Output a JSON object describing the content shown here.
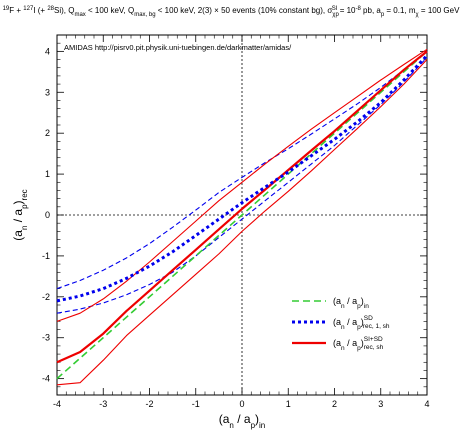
{
  "header": {
    "text": "¹⁹F + ¹²⁷I (+ ²⁸Si), Q_max < 100 keV, Q_max, bg < 100 keV, 2(3) × 50 events (10% constant bg), σ_χp^SI = 10⁻⁸ pb, a_p = 0.1, m_χ = 100 GeV"
  },
  "annotation": {
    "text": "AMIDAS   http://pisrv0.pit.physik.uni-tuebingen.de/darkmatter/amidas/"
  },
  "chart_data": {
    "type": "line",
    "xlabel": "(a_n / a_p)_in",
    "ylabel": "(a_n / a_p)_rec",
    "xlim": [
      -4,
      4
    ],
    "ylim": [
      -4.4,
      4.4
    ],
    "xticks": [
      -4,
      -3,
      -2,
      -1,
      0,
      1,
      2,
      3,
      4
    ],
    "yticks": [
      -4,
      -3,
      -2,
      -1,
      0,
      1,
      2,
      3,
      4
    ],
    "x_tick_labels": [
      "-4",
      "-3",
      "-2",
      "-1",
      "0",
      "1",
      "2",
      "3",
      "4"
    ],
    "y_tick_labels": [
      "-4",
      "-3",
      "-2",
      "-1",
      "0",
      "1",
      "2",
      "3",
      "4"
    ],
    "reference_lines": {
      "x": 0,
      "y": 0,
      "style": "dotted"
    },
    "legend_position": "lower-right",
    "legend": [
      {
        "label": "(a_n / a_p)_in",
        "color": "#33cc33",
        "style": "dashed"
      },
      {
        "label": "(a_n / a_p)_rec, 1, sh ^SD",
        "color": "#0000ee",
        "style": "dotted-thick"
      },
      {
        "label": "(a_n / a_p)_rec, sh ^SI+SD",
        "color": "#ee0000",
        "style": "solid-thick"
      }
    ],
    "series": [
      {
        "name": "(a_n / a_p)_in",
        "color": "#33cc33",
        "style": "dashed",
        "width": 1.6,
        "x": [
          -4,
          4
        ],
        "y": [
          -4,
          4
        ]
      },
      {
        "name": "(a_n / a_p)_rec, 1, sh ^SD",
        "color": "#0000ee",
        "style": "dotted",
        "width": 3,
        "x": [
          -4,
          -3.5,
          -3,
          -2.5,
          -2,
          -1.5,
          -1,
          -0.5,
          0,
          0.5,
          1,
          1.5,
          2,
          2.5,
          3,
          3.5,
          4
        ],
        "y": [
          -2.1,
          -1.98,
          -1.8,
          -1.55,
          -1.25,
          -0.9,
          -0.5,
          -0.1,
          0.3,
          0.68,
          1.05,
          1.45,
          1.85,
          2.28,
          2.75,
          3.3,
          3.9
        ]
      },
      {
        "name": "SD upper band",
        "color": "#0000ee",
        "style": "dashed",
        "width": 1.1,
        "x": [
          -4,
          -3.5,
          -3,
          -2.5,
          -2,
          -1.5,
          -1,
          -0.5,
          0,
          0.5,
          1,
          1.5,
          2,
          2.5,
          3,
          3.5,
          4
        ],
        "y": [
          -1.8,
          -1.6,
          -1.35,
          -1.05,
          -0.7,
          -0.3,
          0.12,
          0.55,
          0.92,
          1.28,
          1.62,
          1.98,
          2.35,
          2.72,
          3.12,
          3.55,
          3.98
        ]
      },
      {
        "name": "SD lower band",
        "color": "#0000ee",
        "style": "dashed",
        "width": 1.1,
        "x": [
          -4,
          -3.5,
          -3,
          -2.5,
          -2,
          -1.5,
          -1,
          -0.5,
          0,
          0.5,
          1,
          1.5,
          2,
          2.5,
          3,
          3.5,
          4
        ],
        "y": [
          -2.4,
          -2.3,
          -2.15,
          -1.95,
          -1.7,
          -1.4,
          -1.0,
          -0.55,
          -0.1,
          0.35,
          0.8,
          1.25,
          1.7,
          2.2,
          2.7,
          3.25,
          3.85
        ]
      },
      {
        "name": "(a_n / a_p)_rec, sh ^SI+SD",
        "color": "#ee0000",
        "style": "solid",
        "width": 2.2,
        "x": [
          -4,
          -3.5,
          -3,
          -2.5,
          -2,
          -1.5,
          -1,
          -0.5,
          0,
          0.5,
          1,
          1.5,
          2,
          2.5,
          3,
          3.5,
          4
        ],
        "y": [
          -3.6,
          -3.35,
          -2.9,
          -2.35,
          -1.85,
          -1.35,
          -0.85,
          -0.35,
          0.15,
          0.62,
          1.1,
          1.58,
          2.05,
          2.55,
          3.05,
          3.55,
          4.0
        ]
      },
      {
        "name": "SI+SD upper band",
        "color": "#ee0000",
        "style": "solid",
        "width": 1.1,
        "x": [
          -4,
          -3.5,
          -3,
          -2.5,
          -2,
          -1.5,
          -1,
          -0.5,
          0,
          0.5,
          1,
          1.5,
          2,
          2.5,
          3,
          3.5,
          4
        ],
        "y": [
          -2.6,
          -2.4,
          -2.05,
          -1.62,
          -1.15,
          -0.65,
          -0.15,
          0.35,
          0.8,
          1.25,
          1.68,
          2.1,
          2.5,
          2.9,
          3.3,
          3.68,
          4.05
        ]
      },
      {
        "name": "SI+SD lower band",
        "color": "#ee0000",
        "style": "solid",
        "width": 1.1,
        "x": [
          -4,
          -3.5,
          -3,
          -2.5,
          -2,
          -1.5,
          -1,
          -0.5,
          0,
          0.5,
          1,
          1.5,
          2,
          2.5,
          3,
          3.5,
          4
        ],
        "y": [
          -4.15,
          -4.1,
          -3.55,
          -2.95,
          -2.45,
          -1.95,
          -1.45,
          -0.95,
          -0.4,
          0.1,
          0.58,
          1.08,
          1.6,
          2.12,
          2.65,
          3.2,
          3.8
        ]
      }
    ]
  }
}
